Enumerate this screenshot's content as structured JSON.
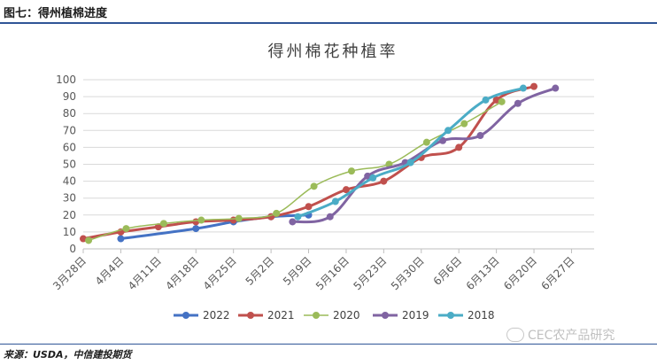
{
  "figure_title": "图七：得州植棉进度",
  "source": "来源：USDA，中信建投期货",
  "watermark": "CEC农产品研究",
  "chart_data": {
    "type": "line",
    "title": "得州棉花种植率",
    "xlabel": "",
    "ylabel": "",
    "x_ticks": [
      "3月28日",
      "4月4日",
      "4月11日",
      "4月18日",
      "4月25日",
      "5月2日",
      "5月9日",
      "5月16日",
      "5月23日",
      "5月30日",
      "6月6日",
      "6月13日",
      "6月20日",
      "6月27日"
    ],
    "y_ticks": [
      "0",
      "10",
      "20",
      "30",
      "40",
      "50",
      "60",
      "70",
      "80",
      "90",
      "100"
    ],
    "ylim": [
      0,
      100
    ],
    "grid": true,
    "legend_position": "bottom",
    "series": [
      {
        "name": "2022",
        "color": "#4472c4",
        "width": 3,
        "marker_r": 4,
        "points": [
          [
            7,
            6
          ],
          [
            21,
            12
          ],
          [
            28,
            16
          ],
          [
            35,
            19
          ],
          [
            42,
            20
          ]
        ]
      },
      {
        "name": "2021",
        "color": "#c0504d",
        "width": 3,
        "marker_r": 4,
        "points": [
          [
            0,
            6
          ],
          [
            7,
            10
          ],
          [
            14,
            13
          ],
          [
            21,
            16
          ],
          [
            28,
            17
          ],
          [
            35,
            19
          ],
          [
            42,
            25
          ],
          [
            49,
            35
          ],
          [
            56,
            40
          ],
          [
            63,
            54
          ],
          [
            70,
            60
          ],
          [
            77,
            88
          ],
          [
            84,
            96
          ]
        ]
      },
      {
        "name": "2020",
        "color": "#9bbb59",
        "width": 1.5,
        "marker_r": 4,
        "points": [
          [
            1,
            5
          ],
          [
            8,
            12
          ],
          [
            15,
            15
          ],
          [
            22,
            17
          ],
          [
            29,
            18
          ],
          [
            36,
            21
          ],
          [
            43,
            37
          ],
          [
            50,
            46
          ],
          [
            57,
            50
          ],
          [
            64,
            63
          ],
          [
            71,
            74
          ],
          [
            78,
            87
          ]
        ]
      },
      {
        "name": "2019",
        "color": "#8064a2",
        "width": 3,
        "marker_r": 4,
        "points": [
          [
            39,
            16
          ],
          [
            46,
            19
          ],
          [
            53,
            43
          ],
          [
            60,
            51
          ],
          [
            67,
            64
          ],
          [
            74,
            67
          ],
          [
            81,
            86
          ],
          [
            88,
            95
          ]
        ]
      },
      {
        "name": "2018",
        "color": "#4bacc6",
        "width": 3,
        "marker_r": 4,
        "points": [
          [
            40,
            19
          ],
          [
            47,
            28
          ],
          [
            54,
            42
          ],
          [
            61,
            51
          ],
          [
            68,
            70
          ],
          [
            75,
            88
          ],
          [
            82,
            95
          ]
        ]
      }
    ]
  }
}
